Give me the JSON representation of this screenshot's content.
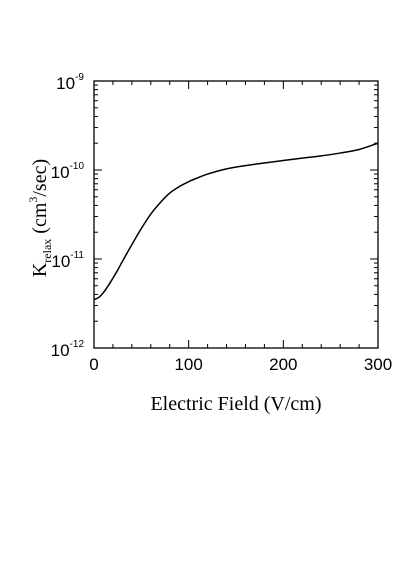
{
  "chart_data": {
    "type": "line",
    "xlabel": "Electric Field (V/cm)",
    "ylabel": {
      "main": "K",
      "subscript": "relax",
      "unit_open": " (cm",
      "unit_exp": "3",
      "unit_close": "/sec)"
    },
    "xlim": [
      0,
      300
    ],
    "ylim": [
      1e-12,
      1e-09
    ],
    "yscale": "log",
    "grid": false,
    "xticks": [
      {
        "value": 0,
        "label": "0"
      },
      {
        "value": 100,
        "label": "100"
      },
      {
        "value": 200,
        "label": "200"
      },
      {
        "value": 300,
        "label": "300"
      }
    ],
    "yticks": [
      {
        "value": 1e-12,
        "base": "10",
        "exp": "-12"
      },
      {
        "value": 1e-11,
        "base": "10",
        "exp": "-11"
      },
      {
        "value": 1e-10,
        "base": "10",
        "exp": "-10"
      },
      {
        "value": 1e-09,
        "base": "10",
        "exp": "-9"
      }
    ],
    "series": [
      {
        "color": "#000000",
        "x": [
          0,
          5,
          10,
          15,
          20,
          25,
          30,
          40,
          50,
          60,
          70,
          80,
          90,
          100,
          110,
          120,
          140,
          160,
          180,
          200,
          220,
          240,
          260,
          280,
          300
        ],
        "y": [
          3.5e-12,
          3.7e-12,
          4.2e-12,
          5e-12,
          6.1e-12,
          7.5e-12,
          9.4e-12,
          1.45e-11,
          2.2e-11,
          3.2e-11,
          4.3e-11,
          5.5e-11,
          6.5e-11,
          7.4e-11,
          8.2e-11,
          9e-11,
          1.03e-10,
          1.12e-10,
          1.2e-10,
          1.28e-10,
          1.36e-10,
          1.44e-10,
          1.55e-10,
          1.7e-10,
          2e-10
        ]
      }
    ]
  }
}
